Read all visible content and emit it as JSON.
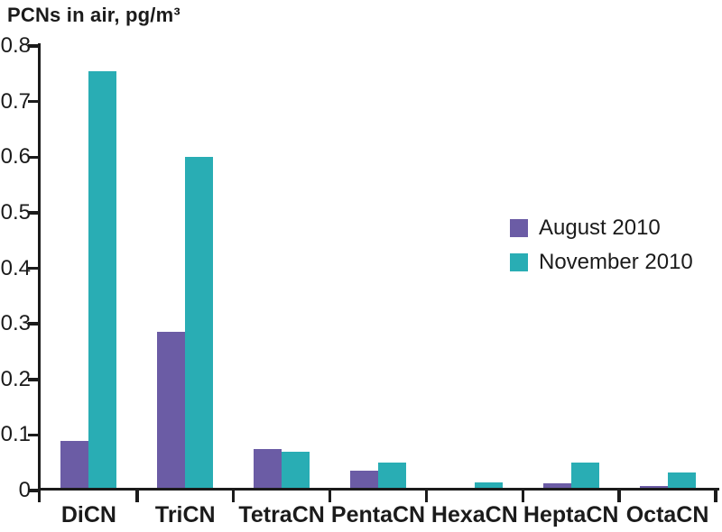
{
  "chart_data": {
    "type": "bar",
    "title": "PCNs in air, pg/m³",
    "categories": [
      "DiCN",
      "TriCN",
      "TetraCN",
      "PentaCN",
      "HexaCN",
      "HeptaCN",
      "OctaCN"
    ],
    "series": [
      {
        "name": "August 2010",
        "color": "#6B5CA5",
        "values": [
          0.09,
          0.285,
          0.075,
          0.035,
          0.005,
          0.013,
          0.008
        ]
      },
      {
        "name": "November 2010",
        "color": "#29ADB4",
        "values": [
          0.755,
          0.6,
          0.07,
          0.05,
          0.014,
          0.05,
          0.033
        ]
      }
    ],
    "xlabel": "",
    "ylabel": "PCNs in air, pg/m³",
    "ylim": [
      0,
      0.8
    ],
    "ytick_labels": [
      "0",
      "0.1",
      "0.2",
      "0.3",
      "0.4",
      "0.5",
      "0.6",
      "0.7",
      "0.8"
    ],
    "grid": false,
    "legend_position": "middle-right",
    "axis_color": "#1b1b1b",
    "text_color": "#1b1b1b"
  }
}
